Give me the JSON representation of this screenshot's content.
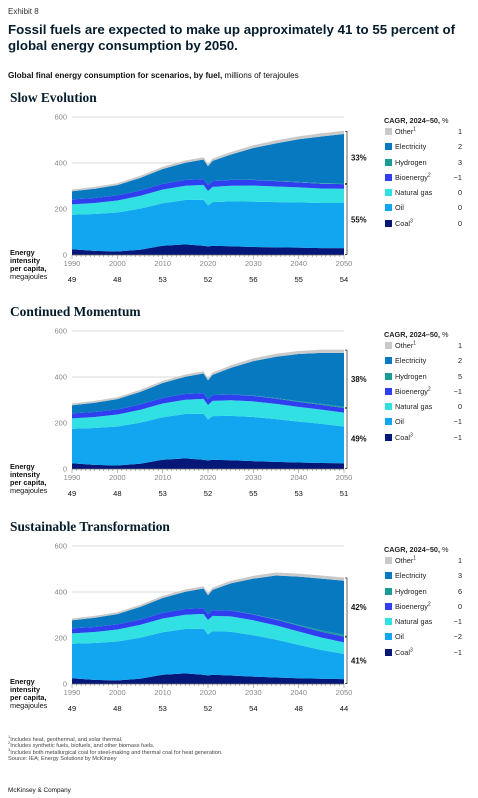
{
  "exhibit": "Exhibit 8",
  "headline": "Fossil fuels are expected to make up approximately 41 to 55 percent of global energy consumption by 2050.",
  "subtitle_bold": "Global final energy consumption for scenarios, by fuel,",
  "subtitle_rest": " millions of terajoules",
  "legend_title_bold": "CAGR, 2024–50,",
  "legend_title_unit": " %",
  "energy_intensity_label": [
    "Energy",
    "intensity",
    "per capita,",
    "megajoules"
  ],
  "colors": {
    "other": "#c9c9c9",
    "electricity": "#0679c0",
    "hydrogen": "#1a9c95",
    "bioenergy": "#2f3ff0",
    "natural_gas": "#31e0e2",
    "oil": "#11a6ef",
    "coal": "#06177a"
  },
  "chart_data": [
    {
      "type": "area",
      "title": "Slow Evolution",
      "x": [
        1990,
        1995,
        2000,
        2005,
        2010,
        2015,
        2019,
        2020,
        2021,
        2025,
        2030,
        2035,
        2040,
        2045,
        2050
      ],
      "xticks": [
        1990,
        2000,
        2010,
        2020,
        2030,
        2040,
        2050
      ],
      "ylim": [
        0,
        600
      ],
      "yticks": [
        0,
        200,
        400,
        600
      ],
      "series": [
        {
          "name": "Coal",
          "key": "coal",
          "cagr": "0",
          "sup": "3",
          "values": [
            25,
            18,
            15,
            23,
            40,
            46,
            40,
            37,
            40,
            38,
            35,
            33,
            32,
            30,
            30
          ]
        },
        {
          "name": "Oil",
          "key": "oil",
          "cagr": "0",
          "sup": "",
          "values": [
            150,
            160,
            170,
            178,
            185,
            193,
            200,
            178,
            190,
            195,
            197,
            197,
            197,
            196,
            196
          ]
        },
        {
          "name": "Natural gas",
          "key": "natural_gas",
          "cagr": "0",
          "sup": "",
          "values": [
            45,
            48,
            52,
            56,
            60,
            62,
            65,
            63,
            66,
            68,
            70,
            68,
            65,
            63,
            62
          ]
        },
        {
          "name": "Bioenergy",
          "key": "bioenergy",
          "cagr": "−1",
          "sup": "2",
          "values": [
            22,
            22,
            22,
            23,
            24,
            25,
            25,
            25,
            25,
            25,
            24,
            23,
            22,
            21,
            20
          ]
        },
        {
          "name": "Hydrogen",
          "key": "hydrogen",
          "cagr": "3",
          "sup": "",
          "values": [
            0,
            0,
            0,
            0,
            0,
            0,
            0,
            0,
            0,
            0.5,
            1,
            1.5,
            2,
            2.5,
            3
          ]
        },
        {
          "name": "Electricity",
          "key": "electricity",
          "cagr": "2",
          "sup": "",
          "values": [
            35,
            40,
            45,
            55,
            65,
            75,
            85,
            83,
            88,
            110,
            138,
            163,
            185,
            203,
            215
          ]
        },
        {
          "name": "Other",
          "key": "other",
          "cagr": "1",
          "sup": "1",
          "values": [
            8,
            8,
            8,
            9,
            9,
            10,
            10,
            10,
            10,
            11,
            12,
            13,
            13,
            14,
            14
          ]
        }
      ],
      "brackets": [
        {
          "label": "33%",
          "series": [
            "Other",
            "Electricity",
            "Hydrogen"
          ]
        },
        {
          "label": "55%",
          "series": [
            "Bioenergy",
            "Natural gas",
            "Oil",
            "Coal"
          ]
        }
      ],
      "energy_intensity": {
        "years": [
          1990,
          2000,
          2010,
          2020,
          2030,
          2040,
          2050
        ],
        "values": [
          "49",
          "48",
          "53",
          "52",
          "56",
          "55",
          "54"
        ]
      }
    },
    {
      "type": "area",
      "title": "Continued Momentum",
      "x": [
        1990,
        1995,
        2000,
        2005,
        2010,
        2015,
        2019,
        2020,
        2021,
        2025,
        2030,
        2035,
        2040,
        2045,
        2050
      ],
      "xticks": [
        1990,
        2000,
        2010,
        2020,
        2030,
        2040,
        2050
      ],
      "ylim": [
        0,
        600
      ],
      "yticks": [
        0,
        200,
        400,
        600
      ],
      "series": [
        {
          "name": "Coal",
          "key": "coal",
          "cagr": "−1",
          "sup": "3",
          "values": [
            25,
            18,
            15,
            23,
            40,
            46,
            40,
            37,
            40,
            38,
            34,
            31,
            28,
            26,
            25
          ]
        },
        {
          "name": "Oil",
          "key": "oil",
          "cagr": "−1",
          "sup": "",
          "values": [
            150,
            160,
            170,
            178,
            185,
            193,
            200,
            178,
            190,
            193,
            192,
            186,
            178,
            170,
            160
          ]
        },
        {
          "name": "Natural gas",
          "key": "natural_gas",
          "cagr": "0",
          "sup": "",
          "values": [
            45,
            48,
            52,
            56,
            60,
            62,
            65,
            63,
            66,
            68,
            68,
            66,
            64,
            62,
            60
          ]
        },
        {
          "name": "Bioenergy",
          "key": "bioenergy",
          "cagr": "−1",
          "sup": "2",
          "values": [
            22,
            22,
            22,
            23,
            24,
            25,
            25,
            25,
            25,
            25,
            24,
            23,
            22,
            21,
            20
          ]
        },
        {
          "name": "Hydrogen",
          "key": "hydrogen",
          "cagr": "5",
          "sup": "",
          "values": [
            0,
            0,
            0,
            0,
            0,
            0,
            0,
            0,
            0,
            0.5,
            1,
            2,
            3,
            4,
            5
          ]
        },
        {
          "name": "Electricity",
          "key": "electricity",
          "cagr": "2",
          "sup": "",
          "values": [
            35,
            40,
            45,
            55,
            65,
            75,
            85,
            83,
            88,
            115,
            150,
            180,
            205,
            222,
            235
          ]
        },
        {
          "name": "Other",
          "key": "other",
          "cagr": "1",
          "sup": "1",
          "values": [
            8,
            8,
            8,
            9,
            9,
            10,
            10,
            10,
            10,
            11,
            12,
            13,
            13,
            14,
            14
          ]
        }
      ],
      "brackets": [
        {
          "label": "38%",
          "series": [
            "Other",
            "Electricity",
            "Hydrogen"
          ]
        },
        {
          "label": "49%",
          "series": [
            "Bioenergy",
            "Natural gas",
            "Oil",
            "Coal"
          ]
        }
      ],
      "energy_intensity": {
        "years": [
          1990,
          2000,
          2010,
          2020,
          2030,
          2040,
          2050
        ],
        "values": [
          "49",
          "48",
          "53",
          "52",
          "55",
          "53",
          "51"
        ]
      }
    },
    {
      "type": "area",
      "title": "Sustainable Transformation",
      "x": [
        1990,
        1995,
        2000,
        2005,
        2010,
        2015,
        2019,
        2020,
        2021,
        2025,
        2030,
        2035,
        2040,
        2045,
        2050
      ],
      "xticks": [
        1990,
        2000,
        2010,
        2020,
        2030,
        2040,
        2050
      ],
      "ylim": [
        0,
        600
      ],
      "yticks": [
        0,
        200,
        400,
        600
      ],
      "series": [
        {
          "name": "Coal",
          "key": "coal",
          "cagr": "−1",
          "sup": "3",
          "values": [
            25,
            18,
            15,
            23,
            40,
            46,
            40,
            37,
            40,
            37,
            32,
            28,
            25,
            23,
            21
          ]
        },
        {
          "name": "Oil",
          "key": "oil",
          "cagr": "−2",
          "sup": "",
          "values": [
            150,
            160,
            170,
            178,
            185,
            193,
            200,
            178,
            190,
            190,
            180,
            165,
            145,
            125,
            110
          ]
        },
        {
          "name": "Natural gas",
          "key": "natural_gas",
          "cagr": "−1",
          "sup": "",
          "values": [
            45,
            48,
            52,
            56,
            60,
            62,
            65,
            63,
            66,
            67,
            65,
            62,
            58,
            54,
            50
          ]
        },
        {
          "name": "Bioenergy",
          "key": "bioenergy",
          "cagr": "0",
          "sup": "2",
          "values": [
            22,
            22,
            22,
            23,
            24,
            25,
            25,
            25,
            25,
            25,
            25,
            25,
            25,
            25,
            25
          ]
        },
        {
          "name": "Hydrogen",
          "key": "hydrogen",
          "cagr": "6",
          "sup": "",
          "values": [
            0,
            0,
            0,
            0,
            0,
            0,
            0,
            0,
            0,
            0.5,
            1,
            2,
            4,
            6,
            8
          ]
        },
        {
          "name": "Electricity",
          "key": "electricity",
          "cagr": "3",
          "sup": "",
          "values": [
            35,
            40,
            45,
            55,
            65,
            75,
            85,
            83,
            88,
            118,
            155,
            190,
            210,
            225,
            235
          ]
        },
        {
          "name": "Other",
          "key": "other",
          "cagr": "1",
          "sup": "1",
          "values": [
            8,
            8,
            8,
            9,
            9,
            10,
            10,
            10,
            10,
            11,
            12,
            13,
            13,
            14,
            14
          ]
        }
      ],
      "brackets": [
        {
          "label": "42%",
          "series": [
            "Other",
            "Electricity",
            "Hydrogen"
          ]
        },
        {
          "label": "41%",
          "series": [
            "Bioenergy",
            "Natural gas",
            "Oil",
            "Coal"
          ]
        }
      ],
      "energy_intensity": {
        "years": [
          1990,
          2000,
          2010,
          2020,
          2030,
          2040,
          2050
        ],
        "values": [
          "49",
          "48",
          "53",
          "52",
          "54",
          "48",
          "44"
        ]
      }
    }
  ],
  "footnotes": [
    "Includes heat, geothermal, and solar thermal.",
    "Includes synthetic fuels, biofuels, and other biomass fuels.",
    "Includes both metallurgical coal for steel-making and thermal coal for heat generation.",
    "Source: IEA; Energy Solutions by McKinsey"
  ],
  "brand": "McKinsey & Company"
}
